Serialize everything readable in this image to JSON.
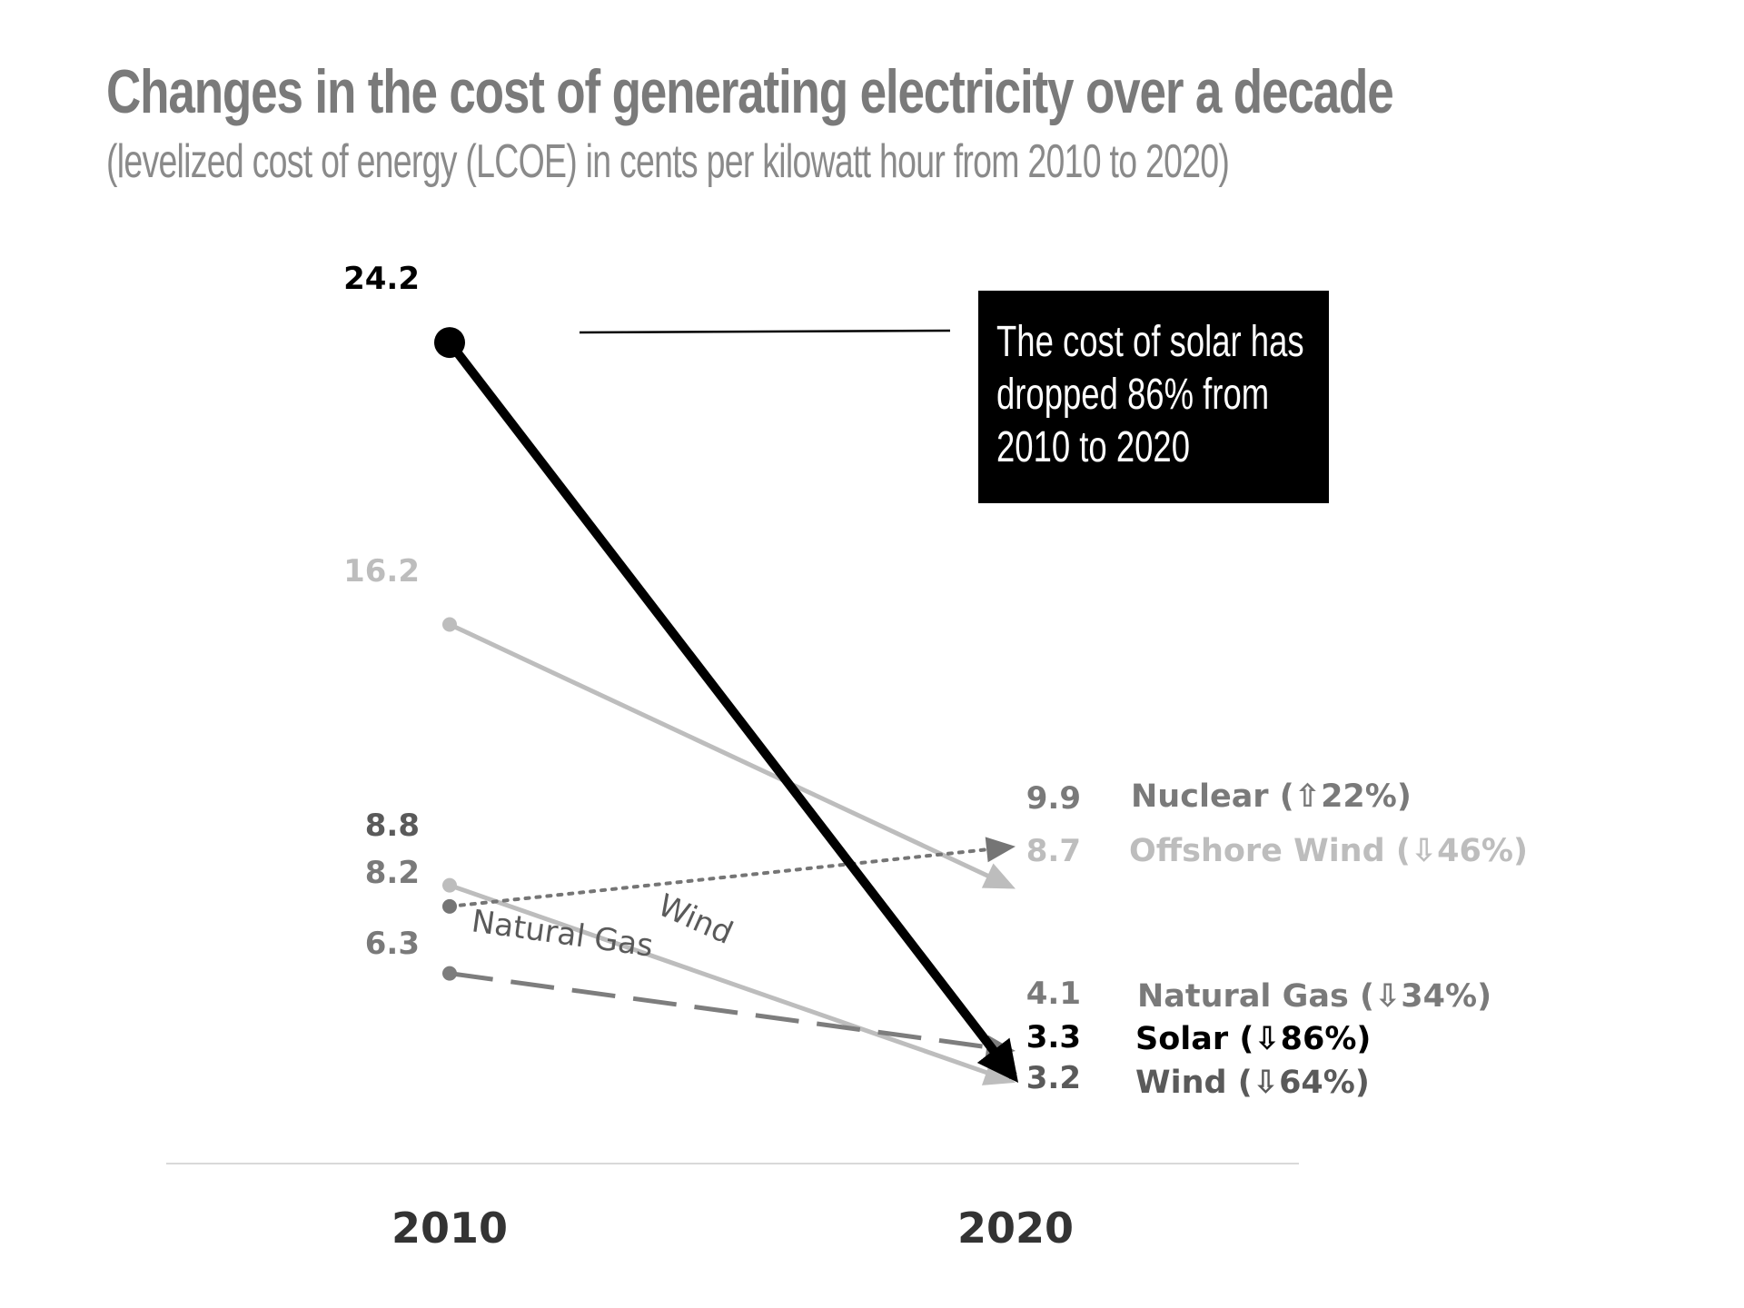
{
  "title": "Changes in the cost of generating electricity over a decade",
  "subtitle": "(levelized cost of energy (LCOE) in cents per kilowatt hour from 2010 to 2020)",
  "annotation": "The cost of solar has dropped 86% from 2010 to 2020",
  "chart_data": {
    "type": "line",
    "x": [
      "2010",
      "2020"
    ],
    "series": [
      {
        "name": "Solar",
        "values": [
          24.2,
          3.3
        ],
        "start_label": "24.2",
        "end_label": "3.3",
        "legend": "Solar (⇩86%)",
        "color": "#000000",
        "style": "solid-bold"
      },
      {
        "name": "Offshore Wind",
        "values": [
          16.2,
          8.7
        ],
        "start_label": "16.2",
        "end_label": "8.7",
        "legend": "Offshore Wind (⇩46%)",
        "color": "#bdbdbd",
        "style": "solid"
      },
      {
        "name": "Wind",
        "values": [
          8.8,
          3.2
        ],
        "start_label": "8.8",
        "end_label": "3.2",
        "legend": "Wind (⇩64%)",
        "inline_label": "Wind",
        "color": "#bdbdbd",
        "label_color": "#5a5a5a",
        "style": "solid"
      },
      {
        "name": "Nuclear",
        "values": [
          8.2,
          9.9
        ],
        "start_label": "8.2",
        "end_label": "9.9",
        "legend": "Nuclear (⇧22%)",
        "color": "#757575",
        "style": "dotted"
      },
      {
        "name": "Natural Gas",
        "values": [
          6.3,
          4.1
        ],
        "start_label": "6.3",
        "end_label": "4.1",
        "legend": "Natural Gas (⇩34%)",
        "inline_label": "Natural Gas",
        "color": "#7d7d7d",
        "style": "dashed"
      }
    ],
    "xlabel": "",
    "ylabel": "",
    "grid": false
  }
}
